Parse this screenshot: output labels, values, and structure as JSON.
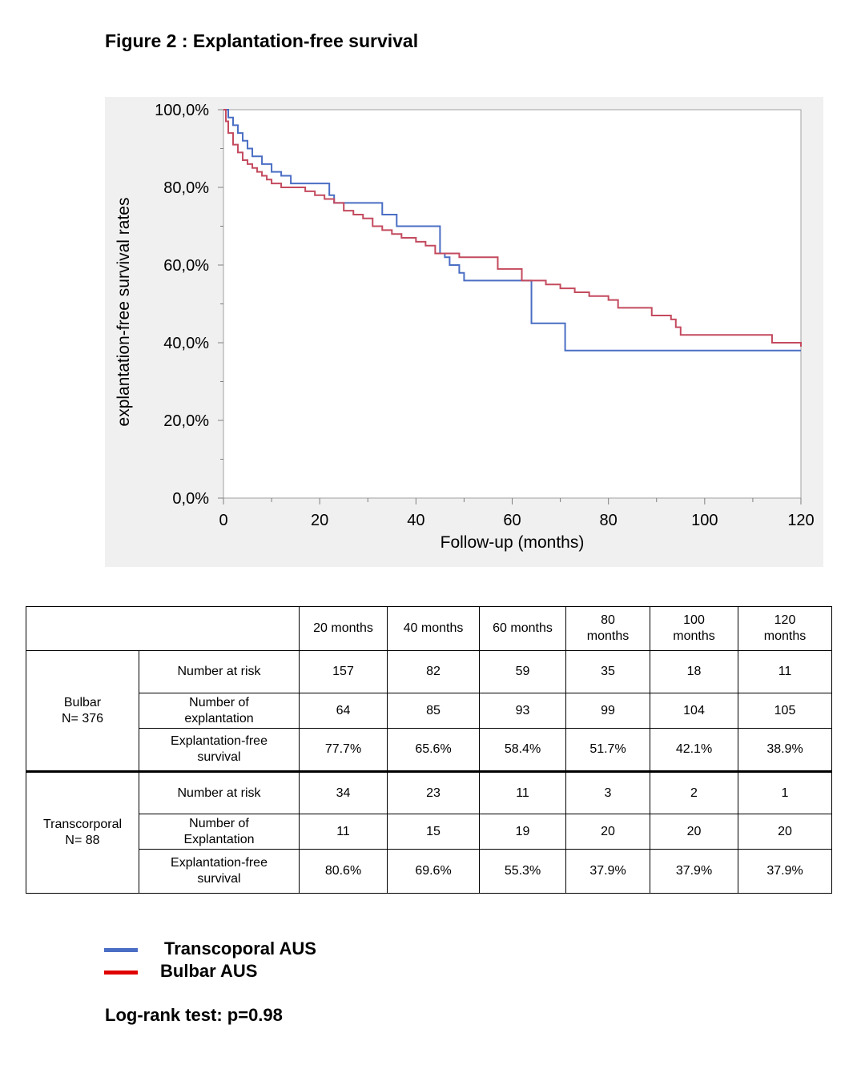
{
  "figure_title": "Figure 2 : Explantation-free survival",
  "chart_data": {
    "type": "line",
    "title": "",
    "xlabel": "Follow-up (months)",
    "ylabel": "explantation-free survival rates",
    "xlim": [
      0,
      120
    ],
    "ylim": [
      0,
      100
    ],
    "x_ticks": [
      "0",
      "20",
      "40",
      "60",
      "80",
      "100",
      "120"
    ],
    "y_ticks": [
      "0,0%",
      "20,0%",
      "40,0%",
      "60,0%",
      "80,0%",
      "100,0%"
    ],
    "x_tick_values": [
      0,
      20,
      40,
      60,
      80,
      100,
      120
    ],
    "y_tick_values": [
      0,
      20,
      40,
      60,
      80,
      100
    ],
    "step": true,
    "series": [
      {
        "name": "Transcoporal AUS",
        "color": "#4a6ec4",
        "points": [
          [
            0,
            100
          ],
          [
            1,
            98
          ],
          [
            2,
            96
          ],
          [
            3,
            94
          ],
          [
            4,
            92
          ],
          [
            5,
            90
          ],
          [
            6,
            88
          ],
          [
            8,
            86
          ],
          [
            10,
            84
          ],
          [
            12,
            83
          ],
          [
            14,
            81
          ],
          [
            16,
            81
          ],
          [
            20,
            81
          ],
          [
            22,
            78
          ],
          [
            23,
            76
          ],
          [
            25,
            76
          ],
          [
            30,
            76
          ],
          [
            33,
            73
          ],
          [
            36,
            70
          ],
          [
            40,
            70
          ],
          [
            44,
            70
          ],
          [
            45,
            63
          ],
          [
            46,
            62
          ],
          [
            47,
            60
          ],
          [
            49,
            58
          ],
          [
            50,
            56
          ],
          [
            55,
            56
          ],
          [
            60,
            56
          ],
          [
            64,
            56
          ],
          [
            64,
            45
          ],
          [
            66,
            45
          ],
          [
            70,
            45
          ],
          [
            71,
            38
          ],
          [
            80,
            38
          ],
          [
            100,
            38
          ],
          [
            120,
            38
          ]
        ]
      },
      {
        "name": "Bulbar AUS",
        "color": "#c44a5e",
        "points": [
          [
            0,
            100
          ],
          [
            0.5,
            97
          ],
          [
            1,
            94
          ],
          [
            2,
            91
          ],
          [
            3,
            89
          ],
          [
            4,
            87
          ],
          [
            5,
            86
          ],
          [
            6,
            85
          ],
          [
            7,
            84
          ],
          [
            8,
            83
          ],
          [
            9,
            82
          ],
          [
            10,
            81
          ],
          [
            12,
            80
          ],
          [
            15,
            80
          ],
          [
            17,
            79
          ],
          [
            19,
            78
          ],
          [
            21,
            77
          ],
          [
            23,
            76
          ],
          [
            25,
            74
          ],
          [
            27,
            73
          ],
          [
            29,
            72
          ],
          [
            31,
            70
          ],
          [
            33,
            69
          ],
          [
            35,
            68
          ],
          [
            37,
            67
          ],
          [
            40,
            66
          ],
          [
            42,
            65
          ],
          [
            44,
            63
          ],
          [
            46,
            63
          ],
          [
            49,
            62
          ],
          [
            55,
            62
          ],
          [
            57,
            59
          ],
          [
            61,
            59
          ],
          [
            62,
            56
          ],
          [
            67,
            55
          ],
          [
            70,
            54
          ],
          [
            73,
            53
          ],
          [
            76,
            52
          ],
          [
            80,
            51
          ],
          [
            82,
            49
          ],
          [
            85,
            49
          ],
          [
            89,
            47
          ],
          [
            93,
            46
          ],
          [
            94,
            44
          ],
          [
            95,
            42
          ],
          [
            100,
            42
          ],
          [
            110,
            42
          ],
          [
            114,
            42
          ],
          [
            114,
            40
          ],
          [
            120,
            39
          ]
        ]
      }
    ]
  },
  "table": {
    "time_headers": [
      "20 months",
      "40 months",
      "60 months",
      "80\nmonths",
      "100\nmonths",
      "120\nmonths"
    ],
    "groups": [
      {
        "label": "Bulbar\nN= 376",
        "rows": [
          {
            "label": "Number at risk",
            "values": [
              "157",
              "82",
              "59",
              "35",
              "18",
              "11"
            ]
          },
          {
            "label": "Number of\nexplantation",
            "values": [
              "64",
              "85",
              "93",
              "99",
              "104",
              "105"
            ]
          },
          {
            "label": "Explantation-free\nsurvival",
            "values": [
              "77.7%",
              "65.6%",
              "58.4%",
              "51.7%",
              "42.1%",
              "38.9%"
            ]
          }
        ]
      },
      {
        "label": "Transcorporal\nN= 88",
        "rows": [
          {
            "label": "Number at risk",
            "values": [
              "34",
              "23",
              "11",
              "3",
              "2",
              "1"
            ]
          },
          {
            "label": "Number of\nExplantation",
            "values": [
              "11",
              "15",
              "19",
              "20",
              "20",
              "20"
            ]
          },
          {
            "label": "Explantation-free\nsurvival",
            "values": [
              "80.6%",
              "69.6%",
              "55.3%",
              "37.9%",
              "37.9%",
              "37.9%"
            ]
          }
        ]
      }
    ]
  },
  "legend": {
    "items": [
      {
        "label": "Transcoporal AUS",
        "color": "#4a6ec4"
      },
      {
        "label": "Bulbar AUS",
        "color": "#e00000"
      }
    ]
  },
  "footer": {
    "logrank": "Log-rank test: p=0.98"
  }
}
